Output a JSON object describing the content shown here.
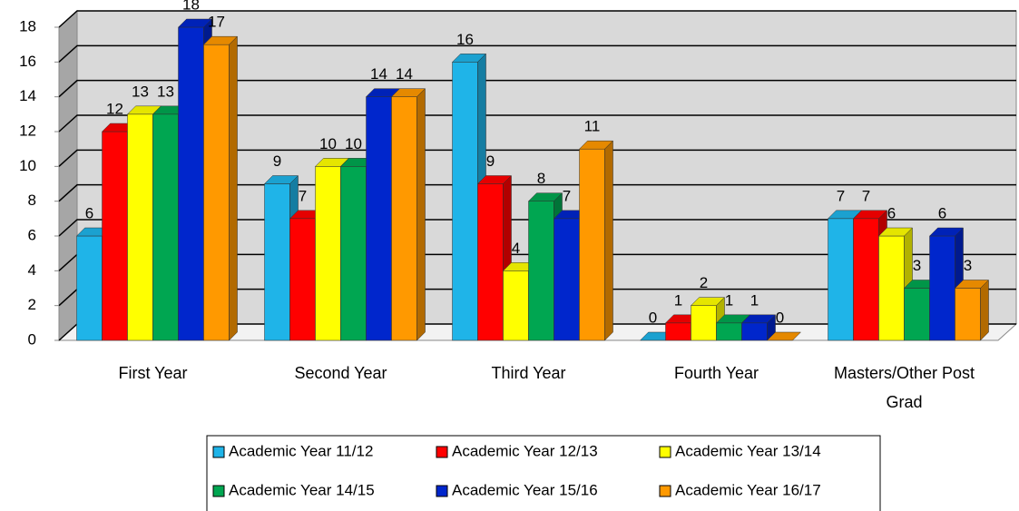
{
  "chart_data": {
    "type": "bar3d",
    "categories": [
      "First Year",
      "Second Year",
      "Third Year",
      "Fourth Year",
      "Masters/Other Post Grad"
    ],
    "series": [
      {
        "name": "Academic Year 11/12",
        "color": "#1fb4e8",
        "values": [
          6,
          9,
          16,
          0,
          7
        ]
      },
      {
        "name": "Academic Year 12/13",
        "color": "#ff0000",
        "values": [
          12,
          7,
          9,
          1,
          7
        ]
      },
      {
        "name": "Academic Year 13/14",
        "color": "#ffff00",
        "values": [
          13,
          10,
          4,
          2,
          6
        ]
      },
      {
        "name": "Academic Year 14/15",
        "color": "#00a651",
        "values": [
          13,
          10,
          8,
          1,
          3
        ]
      },
      {
        "name": "Academic Year 15/16",
        "color": "#0026cc",
        "values": [
          18,
          14,
          7,
          1,
          6
        ]
      },
      {
        "name": "Academic Year 16/17",
        "color": "#ff9900",
        "values": [
          17,
          14,
          11,
          0,
          3
        ]
      }
    ],
    "ylim": [
      0,
      18
    ],
    "yticks": [
      0,
      2,
      4,
      6,
      8,
      10,
      12,
      14,
      16,
      18
    ],
    "grid": true,
    "legend": "bottom"
  }
}
